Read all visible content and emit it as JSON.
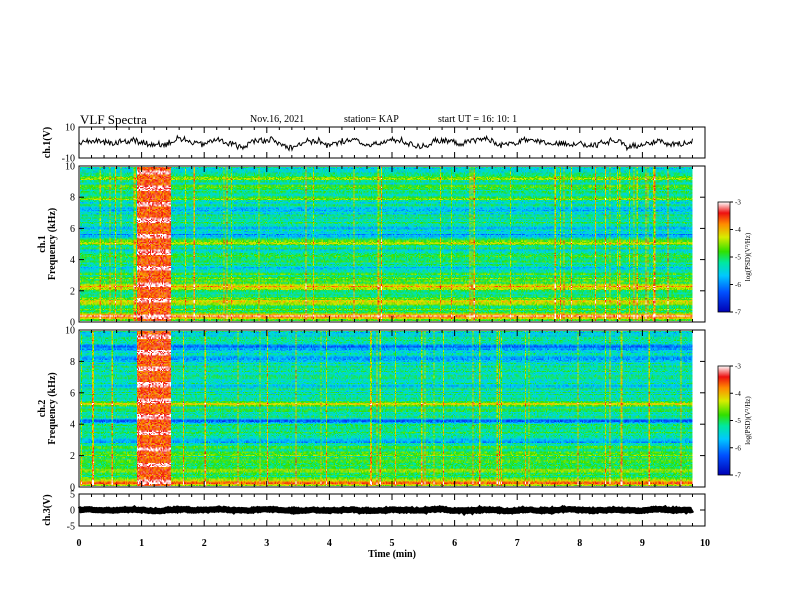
{
  "header": {
    "title": "VLF Spectra",
    "date": "Nov.16, 2021",
    "station": "station= KAP",
    "start": "start  UT =   16: 10: 1"
  },
  "chart_data": [
    {
      "type": "line",
      "name": "ch1_waveform",
      "ylabel": "ch.1(V)",
      "ylim": [
        -10,
        10
      ],
      "yticks": [
        "10",
        "-10"
      ],
      "xlim": [
        0,
        10
      ],
      "mean": 0,
      "amplitude": 6
    },
    {
      "type": "heatmap",
      "name": "ch1_spectrogram",
      "ylabel": "ch.1\nFrequency (kHz)",
      "ylim": [
        0,
        10
      ],
      "yticks": [
        "0",
        "2",
        "4",
        "6",
        "8",
        "10"
      ],
      "xlim": [
        0,
        9.8
      ],
      "colorbar": {
        "label": "log(PSD)(V²/Hz)",
        "range": [
          -7,
          -3
        ],
        "ticks": [
          "-3",
          "-4",
          "-5",
          "-6",
          "-7"
        ]
      },
      "bands": [
        {
          "freq": 9.3,
          "level": -4.3
        },
        {
          "freq": 8.7,
          "level": -4.6
        },
        {
          "freq": 8.0,
          "level": -4.6
        },
        {
          "freq": 7.2,
          "level": -6.0
        },
        {
          "freq": 6.6,
          "level": -5.2
        },
        {
          "freq": 6.0,
          "level": -5.6
        },
        {
          "freq": 5.6,
          "level": -5.8
        },
        {
          "freq": 5.1,
          "level": -4.4
        },
        {
          "freq": 4.5,
          "level": -5.6
        },
        {
          "freq": 3.4,
          "level": -5.9
        },
        {
          "freq": 2.6,
          "level": -4.6
        },
        {
          "freq": 2.2,
          "level": -3.8
        },
        {
          "freq": 1.2,
          "level": -4.2
        },
        {
          "freq": 0.3,
          "level": -3.2
        }
      ],
      "burst": {
        "t_start": 0.9,
        "t_end": 1.45,
        "level": -3.6
      }
    },
    {
      "type": "heatmap",
      "name": "ch2_spectrogram",
      "ylabel": "ch.2\nFrequency (kHz)",
      "ylim": [
        0,
        10
      ],
      "yticks": [
        "0",
        "2",
        "4",
        "6",
        "8",
        "10"
      ],
      "xlim": [
        0,
        9.8
      ],
      "colorbar": {
        "label": "log(PSD)(V²/Hz)",
        "range": [
          -7,
          -3
        ],
        "ticks": [
          "-3",
          "-4",
          "-5",
          "-6",
          "-7"
        ]
      },
      "bands": [
        {
          "freq": 9.0,
          "level": -6.2
        },
        {
          "freq": 8.2,
          "level": -6.1
        },
        {
          "freq": 7.5,
          "level": -5.2
        },
        {
          "freq": 6.5,
          "level": -5.6
        },
        {
          "freq": 5.3,
          "level": -4.4
        },
        {
          "freq": 4.2,
          "level": -6.2
        },
        {
          "freq": 2.9,
          "level": -6.0
        },
        {
          "freq": 2.0,
          "level": -4.8
        },
        {
          "freq": 1.0,
          "level": -4.5
        },
        {
          "freq": 0.2,
          "level": -3.4
        }
      ],
      "burst": {
        "t_start": 0.9,
        "t_end": 1.45,
        "level": -3.6
      }
    },
    {
      "type": "line",
      "name": "ch3_waveform",
      "ylabel": "ch.3(V)",
      "ylim": [
        -5,
        5
      ],
      "yticks": [
        "5",
        "0",
        "-5"
      ],
      "xlim": [
        0,
        10
      ],
      "mean": 0,
      "amplitude": 0.6
    }
  ],
  "xaxis": {
    "label": "Time  (min)",
    "ticks": [
      "0",
      "1",
      "2",
      "3",
      "4",
      "5",
      "6",
      "7",
      "8",
      "9",
      "10"
    ],
    "range": [
      0,
      10
    ]
  }
}
